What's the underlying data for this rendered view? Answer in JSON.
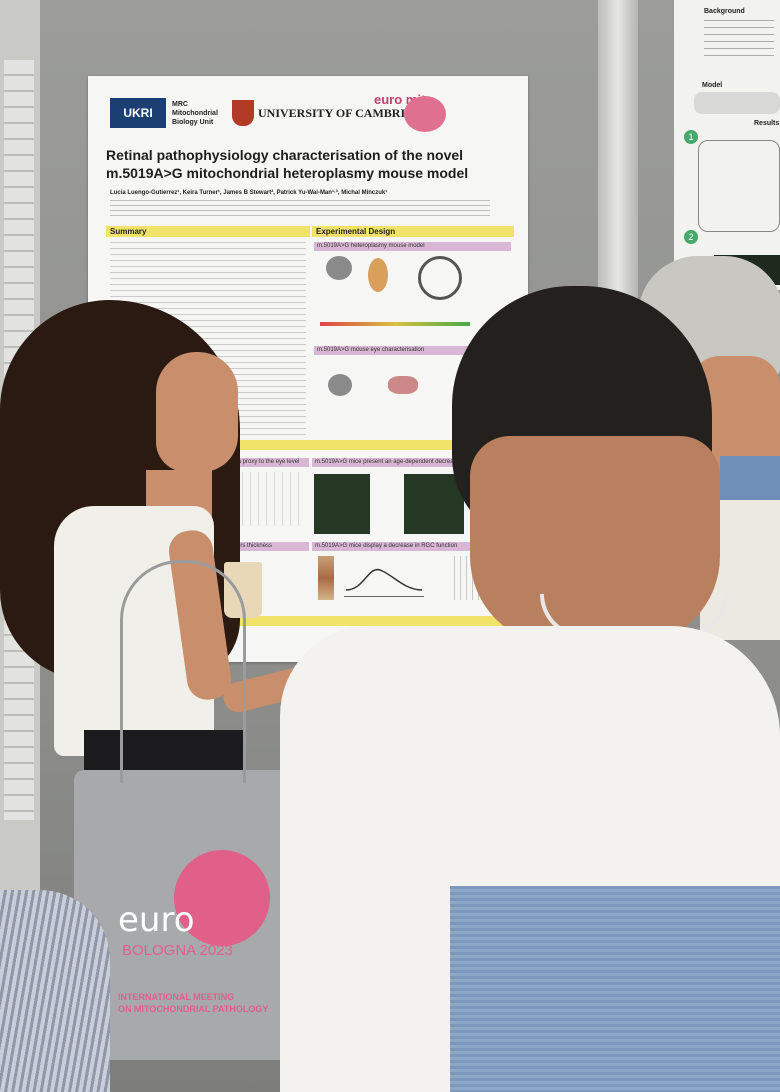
{
  "poster": {
    "logos": {
      "ukri": "UKRI",
      "mrc": "MRC Mitochondrial Biology Unit",
      "cambridge": "UNIVERSITY OF CAMBRIDGE",
      "euromit": "euro mit"
    },
    "title_line1": "Retinal pathophysiology characterisation of the novel",
    "title_line2": "m.5019A>G mitochondrial heteroplasmy mouse model",
    "authors": "Lucia Luengo-Gutierrez¹, Keira Turner¹, James B Stewart², Patrick Yu-Wai-Man¹·³, Michal Minczuk¹",
    "sections": {
      "summary": "Summary",
      "experimental_design": "Experimental Design",
      "heteroplasmy_model": "m.5019A>G heteroplasmy mouse model",
      "eye_characterisation": "m.5019A>G mouse eye characterisation",
      "ipsilateral": "is used as a proxy to the eye level",
      "age_dependent": "m.5019A>G mice present an age-dependent decrease in",
      "retinal_layers": "Retinal layers thickness",
      "rgc": "m.5019A>G mice display a decrease in RGC function"
    }
  },
  "right_poster": {
    "background": "Background",
    "model": "Model",
    "results": "Results",
    "step1": "1",
    "step2": "2"
  },
  "tote_bag": {
    "brand": "euro",
    "city": "BOLOGNA 2023",
    "event_line1": "INTERNATIONAL MEETING",
    "event_line2": "ON MITOCHONDRIAL PATHOLOGY"
  },
  "colors": {
    "poster_yellow": "#f1e26a",
    "poster_pink": "#d9b7d4",
    "bag_pink": "#e0608a"
  }
}
